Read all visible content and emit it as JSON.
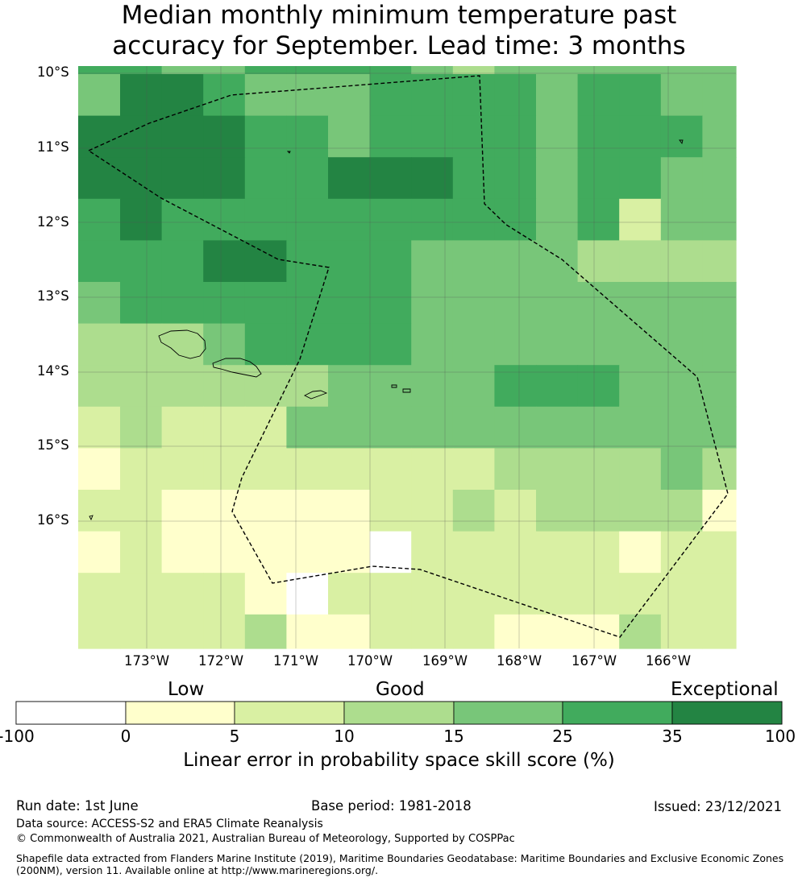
{
  "title": {
    "line1": "Median monthly minimum temperature past",
    "line2": "accuracy for September. Lead time: 3 months"
  },
  "map": {
    "lat_labels": [
      "10°S",
      "11°S",
      "12°S",
      "13°S",
      "14°S",
      "15°S",
      "16°S"
    ],
    "lon_labels": [
      "173°W",
      "172°W",
      "171°W",
      "170°W",
      "169°W",
      "168°W",
      "167°W",
      "166°W"
    ],
    "grid": [
      [
        5,
        5,
        4,
        4,
        5,
        5,
        5,
        5,
        4,
        3,
        4,
        4,
        4,
        4,
        4,
        4
      ],
      [
        4,
        6,
        6,
        5,
        4,
        4,
        4,
        5,
        5,
        5,
        5,
        4,
        5,
        5,
        4,
        4
      ],
      [
        6,
        6,
        6,
        6,
        5,
        5,
        4,
        5,
        5,
        5,
        5,
        4,
        5,
        5,
        5,
        4
      ],
      [
        6,
        6,
        6,
        6,
        5,
        5,
        6,
        6,
        6,
        5,
        5,
        4,
        5,
        5,
        4,
        4
      ],
      [
        5,
        6,
        5,
        5,
        5,
        5,
        5,
        5,
        5,
        5,
        5,
        4,
        5,
        2,
        4,
        4
      ],
      [
        5,
        5,
        5,
        6,
        6,
        5,
        5,
        5,
        4,
        4,
        4,
        4,
        3,
        3,
        3,
        3
      ],
      [
        4,
        5,
        5,
        5,
        5,
        5,
        5,
        5,
        4,
        4,
        4,
        4,
        4,
        4,
        4,
        4
      ],
      [
        3,
        3,
        3,
        4,
        5,
        5,
        5,
        5,
        4,
        4,
        4,
        4,
        4,
        4,
        4,
        4
      ],
      [
        3,
        3,
        3,
        3,
        3,
        3,
        4,
        4,
        4,
        4,
        5,
        5,
        5,
        4,
        4,
        4
      ],
      [
        2,
        3,
        2,
        2,
        2,
        4,
        4,
        4,
        4,
        4,
        4,
        4,
        4,
        4,
        4,
        4
      ],
      [
        1,
        2,
        2,
        2,
        2,
        2,
        2,
        2,
        2,
        2,
        3,
        3,
        3,
        3,
        4,
        3
      ],
      [
        2,
        2,
        1,
        1,
        1,
        1,
        1,
        2,
        2,
        3,
        2,
        3,
        3,
        3,
        3,
        1
      ],
      [
        1,
        2,
        1,
        1,
        1,
        1,
        1,
        0,
        2,
        2,
        2,
        2,
        2,
        1,
        2,
        2
      ],
      [
        2,
        2,
        2,
        2,
        1,
        0,
        2,
        2,
        2,
        2,
        2,
        2,
        2,
        2,
        2,
        2
      ],
      [
        2,
        2,
        2,
        2,
        3,
        1,
        1,
        2,
        2,
        2,
        1,
        1,
        1,
        3,
        2,
        2
      ]
    ]
  },
  "colorbar": {
    "categories": [
      "Low",
      "Good",
      "Exceptional"
    ],
    "ticks": [
      "-100",
      "0",
      "5",
      "10",
      "15",
      "25",
      "35",
      "100"
    ],
    "colors": [
      "#ffffff",
      "#ffffcc",
      "#d9f0a3",
      "#addd8e",
      "#78c679",
      "#41ab5d",
      "#238443"
    ],
    "label": "Linear error in probability space skill score (%)"
  },
  "footer": {
    "run_date": "Run date: 1st June",
    "base_period": "Base period: 1981-2018",
    "issued": "Issued: 23/12/2021",
    "data_source": "Data source: ACCESS-S2 and ERA5 Climate Reanalysis",
    "copyright": "© Commonwealth of Australia 2021, Australian Bureau of Meteorology, Supported by COSPPac",
    "shapefile_line1": "Shapefile data extracted from Flanders Marine Institute (2019), Maritime Boundaries Geodatabase: Maritime Boundaries and Exclusive Economic Zones",
    "shapefile_line2": "(200NM), version 11. Available online at http://www.marineregions.org/."
  }
}
